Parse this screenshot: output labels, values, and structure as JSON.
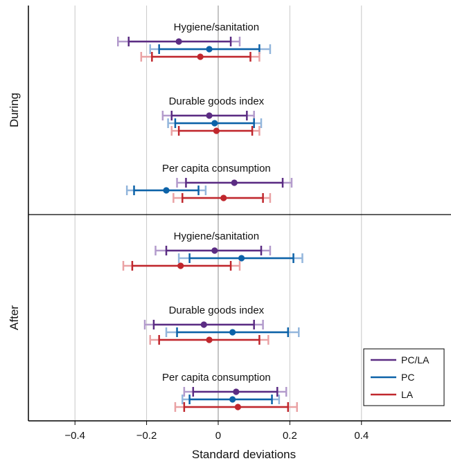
{
  "chart_data": {
    "type": "errorbar",
    "xlabel": "Standard deviations",
    "xlim": [
      -0.53,
      0.65
    ],
    "xticks": [
      -0.4,
      -0.2,
      0,
      0.2,
      0.4
    ],
    "xtick_labels": [
      "−0.4",
      "−0.2",
      "0",
      "0.2",
      "0.4"
    ],
    "grid": "vertical",
    "legend_position": "bottom-right",
    "series": [
      {
        "name": "PC/LA",
        "color": "#5b2c83",
        "light": "#b39bcc"
      },
      {
        "name": "PC",
        "color": "#0c62a8",
        "light": "#93b6dc"
      },
      {
        "name": "LA",
        "color": "#c0272d",
        "light": "#eaa2a4"
      }
    ],
    "panels": [
      {
        "label": "During",
        "groups": [
          {
            "label": "Hygiene/sanitation",
            "estimates": [
              {
                "series": "PC/LA",
                "point": -0.11,
                "ci90": [
                  -0.25,
                  0.035
                ],
                "ci95": [
                  -0.28,
                  0.06
                ]
              },
              {
                "series": "PC",
                "point": -0.025,
                "ci90": [
                  -0.165,
                  0.115
                ],
                "ci95": [
                  -0.19,
                  0.145
                ]
              },
              {
                "series": "LA",
                "point": -0.05,
                "ci90": [
                  -0.185,
                  0.09
                ],
                "ci95": [
                  -0.215,
                  0.115
                ]
              }
            ]
          },
          {
            "label": "Durable goods index",
            "estimates": [
              {
                "series": "PC/LA",
                "point": -0.025,
                "ci90": [
                  -0.13,
                  0.08
                ],
                "ci95": [
                  -0.155,
                  0.1
                ]
              },
              {
                "series": "PC",
                "point": -0.01,
                "ci90": [
                  -0.12,
                  0.1
                ],
                "ci95": [
                  -0.14,
                  0.12
                ]
              },
              {
                "series": "LA",
                "point": -0.005,
                "ci90": [
                  -0.11,
                  0.095
                ],
                "ci95": [
                  -0.13,
                  0.115
                ]
              }
            ]
          },
          {
            "label": "Per capita consumption",
            "estimates": [
              {
                "series": "PC/LA",
                "point": 0.045,
                "ci90": [
                  -0.09,
                  0.18
                ],
                "ci95": [
                  -0.115,
                  0.205
                ]
              },
              {
                "series": "PC",
                "point": -0.145,
                "ci90": [
                  -0.235,
                  -0.055
                ],
                "ci95": [
                  -0.255,
                  -0.035
                ]
              },
              {
                "series": "LA",
                "point": 0.015,
                "ci90": [
                  -0.1,
                  0.125
                ],
                "ci95": [
                  -0.125,
                  0.145
                ]
              }
            ]
          }
        ]
      },
      {
        "label": "After",
        "groups": [
          {
            "label": "Hygiene/sanitation",
            "estimates": [
              {
                "series": "PC/LA",
                "point": -0.01,
                "ci90": [
                  -0.145,
                  0.12
                ],
                "ci95": [
                  -0.175,
                  0.145
                ]
              },
              {
                "series": "PC",
                "point": 0.065,
                "ci90": [
                  -0.08,
                  0.21
                ],
                "ci95": [
                  -0.11,
                  0.235
                ]
              },
              {
                "series": "LA",
                "point": -0.105,
                "ci90": [
                  -0.24,
                  0.035
                ],
                "ci95": [
                  -0.265,
                  0.06
                ]
              }
            ]
          },
          {
            "label": "Durable goods index",
            "estimates": [
              {
                "series": "PC/LA",
                "point": -0.04,
                "ci90": [
                  -0.18,
                  0.1
                ],
                "ci95": [
                  -0.205,
                  0.125
                ]
              },
              {
                "series": "PC",
                "point": 0.04,
                "ci90": [
                  -0.115,
                  0.195
                ],
                "ci95": [
                  -0.145,
                  0.225
                ]
              },
              {
                "series": "LA",
                "point": -0.025,
                "ci90": [
                  -0.165,
                  0.115
                ],
                "ci95": [
                  -0.19,
                  0.14
                ]
              }
            ]
          },
          {
            "label": "Per capita consumption",
            "estimates": [
              {
                "series": "PC/LA",
                "point": 0.05,
                "ci90": [
                  -0.07,
                  0.165
                ],
                "ci95": [
                  -0.095,
                  0.19
                ]
              },
              {
                "series": "PC",
                "point": 0.04,
                "ci90": [
                  -0.08,
                  0.15
                ],
                "ci95": [
                  -0.1,
                  0.17
                ]
              },
              {
                "series": "LA",
                "point": 0.055,
                "ci90": [
                  -0.095,
                  0.195
                ],
                "ci95": [
                  -0.12,
                  0.22
                ]
              }
            ]
          }
        ]
      }
    ]
  }
}
